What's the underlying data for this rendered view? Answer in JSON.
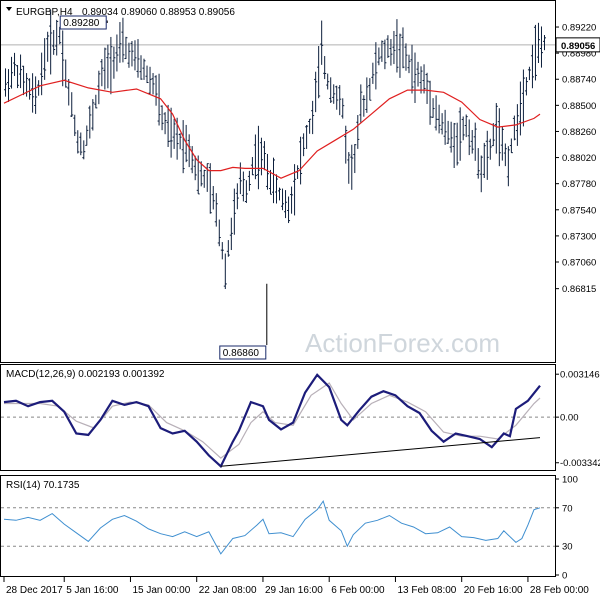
{
  "chart_data": [
    {
      "type": "ohlc",
      "symbol_header": "EURGBP,H4",
      "ohlc_header": "0.89034 0.89060 0.88953 0.89056",
      "ylim": [
        0.8615,
        0.8945
      ],
      "ticks": [
        "0.89220",
        "0.88980",
        "0.88740",
        "0.88500",
        "0.88260",
        "0.88020",
        "0.87780",
        "0.87540",
        "0.87300",
        "0.87060",
        "0.86815"
      ],
      "tick_values": [
        0.8922,
        0.8898,
        0.8874,
        0.885,
        0.8826,
        0.8802,
        0.8778,
        0.8754,
        0.873,
        0.8706,
        0.86815
      ],
      "last_price": "0.89056",
      "last_price_value": 0.89056,
      "annotations": [
        {
          "label": "0.89280",
          "value": 0.8928,
          "bar": 19
        },
        {
          "label": "0.86860",
          "value": 0.8686,
          "bar": 72
        }
      ],
      "x_labels": [
        "28 Dec 2017",
        "5 Jan 16:00",
        "15 Jan 00:00",
        "22 Jan 08:00",
        "29 Jan 16:00",
        "6 Feb 00:00",
        "13 Feb 08:00",
        "20 Feb 16:00",
        "28 Feb 00:00"
      ],
      "x_label_bars": [
        0,
        20,
        42,
        64,
        86,
        108,
        130,
        152,
        174
      ],
      "price_path": [
        [
          0,
          0.8868
        ],
        [
          3,
          0.8885
        ],
        [
          6,
          0.8872
        ],
        [
          10,
          0.8855
        ],
        [
          14,
          0.8905
        ],
        [
          18,
          0.8915
        ],
        [
          21,
          0.8862
        ],
        [
          24,
          0.8818
        ],
        [
          26,
          0.8812
        ],
        [
          29,
          0.8842
        ],
        [
          32,
          0.8878
        ],
        [
          36,
          0.8895
        ],
        [
          39,
          0.8905
        ],
        [
          43,
          0.8892
        ],
        [
          46,
          0.8882
        ],
        [
          50,
          0.8865
        ],
        [
          52,
          0.8838
        ],
        [
          55,
          0.8822
        ],
        [
          58,
          0.8818
        ],
        [
          61,
          0.8812
        ],
        [
          64,
          0.8785
        ],
        [
          67,
          0.8782
        ],
        [
          70,
          0.8752
        ],
        [
          73,
          0.87
        ],
        [
          75,
          0.8735
        ],
        [
          78,
          0.8778
        ],
        [
          80,
          0.8772
        ],
        [
          83,
          0.8805
        ],
        [
          86,
          0.88
        ],
        [
          88,
          0.8782
        ],
        [
          91,
          0.8768
        ],
        [
          94,
          0.8755
        ],
        [
          96,
          0.8778
        ],
        [
          99,
          0.8812
        ],
        [
          102,
          0.884
        ],
        [
          105,
          0.89
        ],
        [
          107,
          0.8872
        ],
        [
          110,
          0.8858
        ],
        [
          112,
          0.8845
        ],
        [
          114,
          0.8792
        ],
        [
          116,
          0.8802
        ],
        [
          118,
          0.8845
        ],
        [
          121,
          0.8868
        ],
        [
          124,
          0.8895
        ],
        [
          127,
          0.89
        ],
        [
          130,
          0.8905
        ],
        [
          133,
          0.8893
        ],
        [
          136,
          0.8878
        ],
        [
          139,
          0.8872
        ],
        [
          141,
          0.886
        ],
        [
          143,
          0.8842
        ],
        [
          145,
          0.8832
        ],
        [
          148,
          0.8818
        ],
        [
          150,
          0.882
        ],
        [
          153,
          0.8832
        ],
        [
          156,
          0.881
        ],
        [
          158,
          0.8792
        ],
        [
          160,
          0.88
        ],
        [
          163,
          0.8832
        ],
        [
          165,
          0.8808
        ],
        [
          167,
          0.88
        ],
        [
          170,
          0.8838
        ],
        [
          172,
          0.8862
        ],
        [
          174,
          0.888
        ],
        [
          176,
          0.89
        ],
        [
          178,
          0.8906
        ]
      ],
      "ma_path": [
        [
          0,
          0.8852
        ],
        [
          6,
          0.886
        ],
        [
          12,
          0.8868
        ],
        [
          20,
          0.8873
        ],
        [
          28,
          0.8866
        ],
        [
          36,
          0.8862
        ],
        [
          44,
          0.8865
        ],
        [
          52,
          0.8856
        ],
        [
          56,
          0.8842
        ],
        [
          60,
          0.8818
        ],
        [
          64,
          0.88
        ],
        [
          68,
          0.879
        ],
        [
          72,
          0.879
        ],
        [
          76,
          0.8793
        ],
        [
          80,
          0.8792
        ],
        [
          86,
          0.8792
        ],
        [
          92,
          0.8783
        ],
        [
          98,
          0.879
        ],
        [
          104,
          0.8808
        ],
        [
          110,
          0.8818
        ],
        [
          116,
          0.8828
        ],
        [
          122,
          0.8842
        ],
        [
          128,
          0.8856
        ],
        [
          134,
          0.8864
        ],
        [
          140,
          0.8864
        ],
        [
          146,
          0.8862
        ],
        [
          152,
          0.8853
        ],
        [
          158,
          0.8837
        ],
        [
          164,
          0.883
        ],
        [
          170,
          0.8832
        ],
        [
          176,
          0.8838
        ],
        [
          178,
          0.8842
        ]
      ],
      "grid": false
    },
    {
      "type": "line",
      "title": "MACD(12,26,9) 0.002193 0.001392",
      "ylim": [
        -0.0038,
        0.0036
      ],
      "ticks": [
        "0.003146",
        "0.00",
        "-0.003342"
      ],
      "tick_values": [
        0.003146,
        0.0,
        -0.003342
      ],
      "macd_path": [
        [
          0,
          0.0011
        ],
        [
          4,
          0.0012
        ],
        [
          8,
          0.0008
        ],
        [
          12,
          0.0011
        ],
        [
          16,
          0.0012
        ],
        [
          20,
          0.0004
        ],
        [
          24,
          -0.0012
        ],
        [
          28,
          -0.0013
        ],
        [
          32,
          -0.0002
        ],
        [
          36,
          0.0012
        ],
        [
          40,
          0.0009
        ],
        [
          44,
          0.0011
        ],
        [
          48,
          0.0008
        ],
        [
          52,
          -0.0008
        ],
        [
          56,
          -0.0012
        ],
        [
          60,
          -0.001
        ],
        [
          64,
          -0.0018
        ],
        [
          68,
          -0.0028
        ],
        [
          72,
          -0.0036
        ],
        [
          76,
          -0.0018
        ],
        [
          78,
          -0.001
        ],
        [
          82,
          0.0011
        ],
        [
          86,
          0.0008
        ],
        [
          88,
          -0.0002
        ],
        [
          92,
          -0.0009
        ],
        [
          96,
          -0.0004
        ],
        [
          100,
          0.0018
        ],
        [
          104,
          0.0031
        ],
        [
          108,
          0.0022
        ],
        [
          112,
          -0.0002
        ],
        [
          114,
          -0.0006
        ],
        [
          118,
          0.0005
        ],
        [
          122,
          0.0015
        ],
        [
          126,
          0.0019
        ],
        [
          130,
          0.0016
        ],
        [
          134,
          0.0008
        ],
        [
          138,
          0.0003
        ],
        [
          142,
          -0.001
        ],
        [
          146,
          -0.0018
        ],
        [
          150,
          -0.0012
        ],
        [
          154,
          -0.0014
        ],
        [
          158,
          -0.0016
        ],
        [
          162,
          -0.0022
        ],
        [
          166,
          -0.0012
        ],
        [
          168,
          -0.0014
        ],
        [
          170,
          0.0006
        ],
        [
          174,
          0.0012
        ],
        [
          178,
          0.0023
        ]
      ],
      "signal_path": [
        [
          0,
          0.001
        ],
        [
          6,
          0.001
        ],
        [
          12,
          0.001
        ],
        [
          18,
          0.0008
        ],
        [
          24,
          -0.0003
        ],
        [
          30,
          -0.0008
        ],
        [
          36,
          0.0008
        ],
        [
          42,
          0.0011
        ],
        [
          48,
          0.0009
        ],
        [
          54,
          -0.0004
        ],
        [
          60,
          -0.001
        ],
        [
          66,
          -0.0018
        ],
        [
          72,
          -0.003
        ],
        [
          78,
          -0.002
        ],
        [
          82,
          -0.0004
        ],
        [
          86,
          0.0004
        ],
        [
          90,
          -0.0004
        ],
        [
          96,
          -0.0006
        ],
        [
          102,
          0.0016
        ],
        [
          108,
          0.0025
        ],
        [
          112,
          0.001
        ],
        [
          116,
          -0.0002
        ],
        [
          122,
          0.001
        ],
        [
          128,
          0.0016
        ],
        [
          134,
          0.0011
        ],
        [
          140,
          0.0004
        ],
        [
          146,
          -0.0011
        ],
        [
          152,
          -0.0014
        ],
        [
          158,
          -0.0014
        ],
        [
          164,
          -0.0016
        ],
        [
          170,
          -0.0006
        ],
        [
          176,
          0.001
        ],
        [
          178,
          0.0014
        ]
      ],
      "trendline": [
        [
          72,
          -0.0036
        ],
        [
          178,
          -0.0015
        ]
      ]
    },
    {
      "type": "line",
      "title": "RSI(14) 70.1735",
      "ylim": [
        0,
        100
      ],
      "ticks": [
        "100",
        "70",
        "30",
        "0"
      ],
      "tick_values": [
        100,
        70,
        30,
        0
      ],
      "levels": [
        70,
        30
      ],
      "rsi_path": [
        [
          0,
          58
        ],
        [
          4,
          57
        ],
        [
          8,
          60
        ],
        [
          12,
          57
        ],
        [
          16,
          64
        ],
        [
          20,
          53
        ],
        [
          24,
          44
        ],
        [
          28,
          35
        ],
        [
          32,
          49
        ],
        [
          36,
          58
        ],
        [
          40,
          62
        ],
        [
          44,
          56
        ],
        [
          48,
          48
        ],
        [
          52,
          43
        ],
        [
          56,
          40
        ],
        [
          60,
          45
        ],
        [
          64,
          40
        ],
        [
          68,
          45
        ],
        [
          72,
          22
        ],
        [
          76,
          38
        ],
        [
          80,
          41
        ],
        [
          84,
          52
        ],
        [
          86,
          58
        ],
        [
          88,
          43
        ],
        [
          92,
          44
        ],
        [
          96,
          40
        ],
        [
          100,
          58
        ],
        [
          104,
          68
        ],
        [
          106,
          77
        ],
        [
          108,
          57
        ],
        [
          112,
          46
        ],
        [
          114,
          30
        ],
        [
          116,
          42
        ],
        [
          120,
          54
        ],
        [
          124,
          57
        ],
        [
          128,
          62
        ],
        [
          132,
          54
        ],
        [
          136,
          50
        ],
        [
          140,
          43
        ],
        [
          144,
          44
        ],
        [
          148,
          50
        ],
        [
          152,
          40
        ],
        [
          156,
          39
        ],
        [
          160,
          36
        ],
        [
          164,
          38
        ],
        [
          166,
          46
        ],
        [
          170,
          34
        ],
        [
          172,
          38
        ],
        [
          174,
          52
        ],
        [
          176,
          68
        ],
        [
          178,
          70
        ]
      ]
    }
  ]
}
